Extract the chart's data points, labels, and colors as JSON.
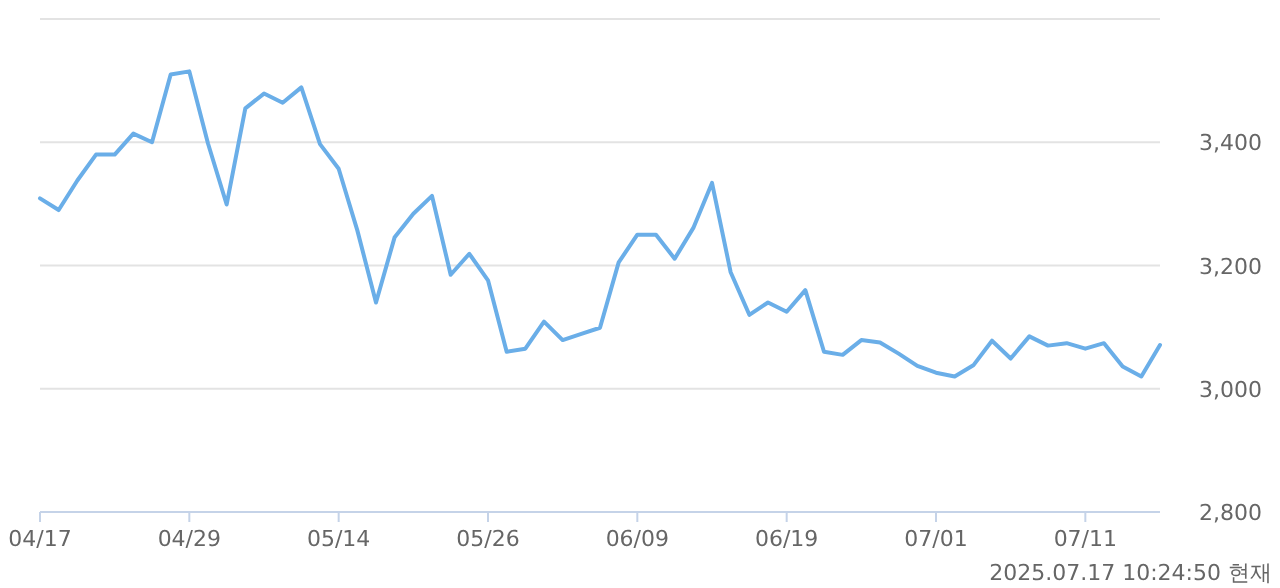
{
  "chart_data": {
    "type": "line",
    "categories": [
      "04/17",
      null,
      null,
      null,
      null,
      null,
      null,
      null,
      "04/29",
      null,
      null,
      null,
      null,
      null,
      null,
      null,
      "05/14",
      null,
      null,
      null,
      null,
      null,
      null,
      null,
      "05/26",
      null,
      null,
      null,
      null,
      null,
      null,
      null,
      "06/09",
      null,
      null,
      null,
      null,
      null,
      null,
      null,
      "06/19",
      null,
      null,
      null,
      null,
      null,
      null,
      null,
      "07/01",
      null,
      null,
      null,
      null,
      null,
      null,
      null,
      "07/11",
      null,
      null,
      null,
      null
    ],
    "series": [
      {
        "color": "#6aaee8",
        "values": [
          3309,
          3290,
          3338,
          3380,
          3380,
          3414,
          3400,
          3510,
          3515,
          3398,
          3299,
          3455,
          3479,
          3464,
          3489,
          3397,
          3357,
          3257,
          3140,
          3246,
          3284,
          3313,
          3185,
          3219,
          3176,
          3060,
          3065,
          3109,
          3079,
          3089,
          3099,
          3205,
          3250,
          3250,
          3211,
          3261,
          3334,
          3189,
          3120,
          3140,
          3125,
          3160,
          3060,
          3055,
          3079,
          3075,
          3057,
          3037,
          3026,
          3020,
          3038,
          3078,
          3049,
          3085,
          3070,
          3074,
          3065,
          3074,
          3036,
          3020,
          3071
        ]
      }
    ],
    "ylim": [
      2800,
      3600
    ],
    "yticks": [
      {
        "value": 2800,
        "label": "2,800"
      },
      {
        "value": 3000,
        "label": "3,000"
      },
      {
        "value": 3200,
        "label": "3,200"
      },
      {
        "value": 3400,
        "label": "3,400"
      },
      {
        "value": 3600,
        "label": null
      }
    ],
    "grid": "y",
    "marker": "none",
    "line_style": "solid",
    "annotations": [
      "2025.07.17 10:24:50 현재"
    ]
  }
}
